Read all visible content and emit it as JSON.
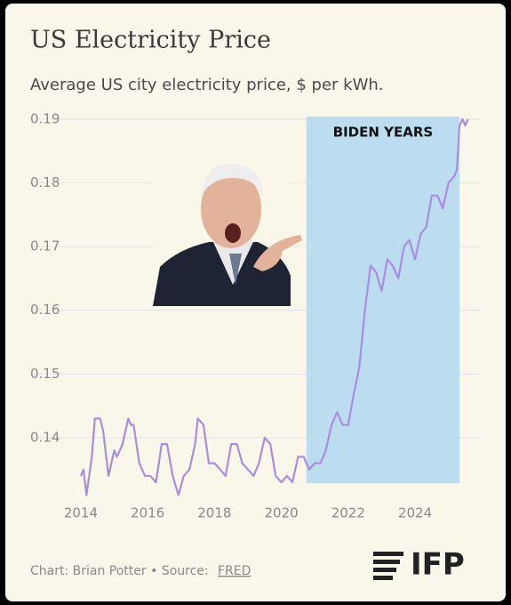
{
  "chart_data": {
    "type": "line",
    "title": "US Electricity Price",
    "subtitle": "Average US city electricity price, $ per kWh.",
    "credit": "Chart: Brian Potter • Source:",
    "source": "FRED",
    "logo": "IFP",
    "annotation": {
      "text": "BIDEN YEARS",
      "x_range": [
        2020.75,
        2025.33
      ],
      "color": "#bcdcf0"
    },
    "xlim": [
      2012.46,
      2025.94
    ],
    "xticks": [
      2014,
      2016,
      2018,
      2020,
      2022,
      2024
    ],
    "ylim": [
      0.1305,
      0.1904
    ],
    "yticks": [
      0.14,
      0.15,
      0.16,
      0.17,
      0.18,
      0.19
    ],
    "grid": true,
    "series": [
      {
        "name": "Electricity price",
        "color": "#a98de0",
        "x": [
          2014.0,
          2014.08,
          2014.17,
          2014.33,
          2014.42,
          2014.58,
          2014.67,
          2014.83,
          2015.0,
          2015.08,
          2015.25,
          2015.42,
          2015.5,
          2015.58,
          2015.75,
          2015.92,
          2016.08,
          2016.25,
          2016.42,
          2016.58,
          2016.75,
          2016.92,
          2017.08,
          2017.25,
          2017.42,
          2017.5,
          2017.67,
          2017.83,
          2018.0,
          2018.17,
          2018.33,
          2018.5,
          2018.67,
          2018.83,
          2019.0,
          2019.17,
          2019.33,
          2019.5,
          2019.67,
          2019.83,
          2020.0,
          2020.17,
          2020.33,
          2020.5,
          2020.67,
          2020.83,
          2021.0,
          2021.17,
          2021.33,
          2021.5,
          2021.67,
          2021.83,
          2022.0,
          2022.17,
          2022.33,
          2022.5,
          2022.67,
          2022.83,
          2023.0,
          2023.17,
          2023.33,
          2023.5,
          2023.67,
          2023.83,
          2024.0,
          2024.17,
          2024.33,
          2024.5,
          2024.67,
          2024.83,
          2025.0,
          2025.17,
          2025.25,
          2025.33,
          2025.42,
          2025.5,
          2025.58
        ],
        "values": [
          0.134,
          0.135,
          0.131,
          0.137,
          0.143,
          0.143,
          0.141,
          0.134,
          0.138,
          0.137,
          0.139,
          0.143,
          0.142,
          0.142,
          0.136,
          0.134,
          0.134,
          0.133,
          0.139,
          0.139,
          0.134,
          0.131,
          0.134,
          0.135,
          0.139,
          0.143,
          0.142,
          0.136,
          0.136,
          0.135,
          0.134,
          0.139,
          0.139,
          0.136,
          0.135,
          0.134,
          0.136,
          0.14,
          0.139,
          0.134,
          0.133,
          0.134,
          0.133,
          0.137,
          0.137,
          0.135,
          0.136,
          0.136,
          0.138,
          0.142,
          0.144,
          0.142,
          0.142,
          0.147,
          0.151,
          0.16,
          0.167,
          0.166,
          0.163,
          0.168,
          0.167,
          0.165,
          0.17,
          0.171,
          0.168,
          0.172,
          0.173,
          0.178,
          0.178,
          0.176,
          0.18,
          0.181,
          0.182,
          0.189,
          0.19,
          0.189,
          0.19
        ]
      }
    ]
  }
}
